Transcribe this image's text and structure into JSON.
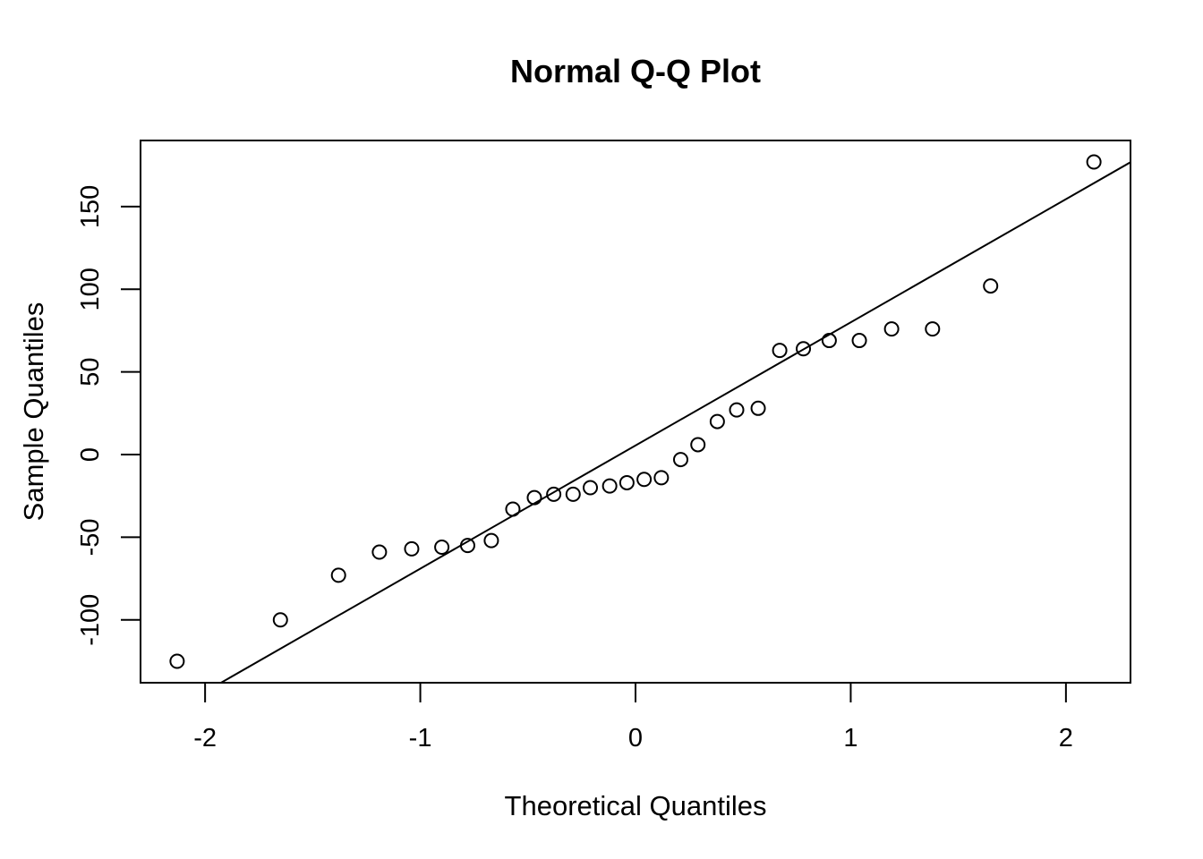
{
  "chart_data": {
    "type": "scatter",
    "title": "Normal Q-Q Plot",
    "xlabel": "Theoretical Quantiles",
    "ylabel": "Sample Quantiles",
    "xlim": [
      -2.3,
      2.3
    ],
    "ylim": [
      -138,
      190
    ],
    "x_ticks": [
      -2,
      -1,
      0,
      1,
      2
    ],
    "y_ticks": [
      -100,
      -50,
      0,
      50,
      100,
      150
    ],
    "grid": false,
    "legend": "none",
    "point_style": "open-circle",
    "colors": {
      "points": "#000000",
      "line": "#000000",
      "frame": "#000000",
      "background": "#ffffff"
    },
    "points": [
      {
        "x": -2.13,
        "y": -125
      },
      {
        "x": -1.65,
        "y": -100
      },
      {
        "x": -1.38,
        "y": -73
      },
      {
        "x": -1.19,
        "y": -59
      },
      {
        "x": -1.04,
        "y": -57
      },
      {
        "x": -0.9,
        "y": -56
      },
      {
        "x": -0.78,
        "y": -55
      },
      {
        "x": -0.67,
        "y": -52
      },
      {
        "x": -0.57,
        "y": -33
      },
      {
        "x": -0.47,
        "y": -26
      },
      {
        "x": -0.38,
        "y": -24
      },
      {
        "x": -0.29,
        "y": -24
      },
      {
        "x": -0.21,
        "y": -20
      },
      {
        "x": -0.12,
        "y": -19
      },
      {
        "x": -0.04,
        "y": -17
      },
      {
        "x": 0.04,
        "y": -15
      },
      {
        "x": 0.12,
        "y": -14
      },
      {
        "x": 0.21,
        "y": -3
      },
      {
        "x": 0.29,
        "y": 6
      },
      {
        "x": 0.38,
        "y": 20
      },
      {
        "x": 0.47,
        "y": 27
      },
      {
        "x": 0.57,
        "y": 28
      },
      {
        "x": 0.67,
        "y": 63
      },
      {
        "x": 0.78,
        "y": 64
      },
      {
        "x": 0.9,
        "y": 69
      },
      {
        "x": 1.04,
        "y": 69
      },
      {
        "x": 1.19,
        "y": 76
      },
      {
        "x": 1.38,
        "y": 76
      },
      {
        "x": 1.65,
        "y": 102
      },
      {
        "x": 2.13,
        "y": 177
      }
    ],
    "reference_line": {
      "intercept": 5.5,
      "slope": 74.5
    }
  }
}
